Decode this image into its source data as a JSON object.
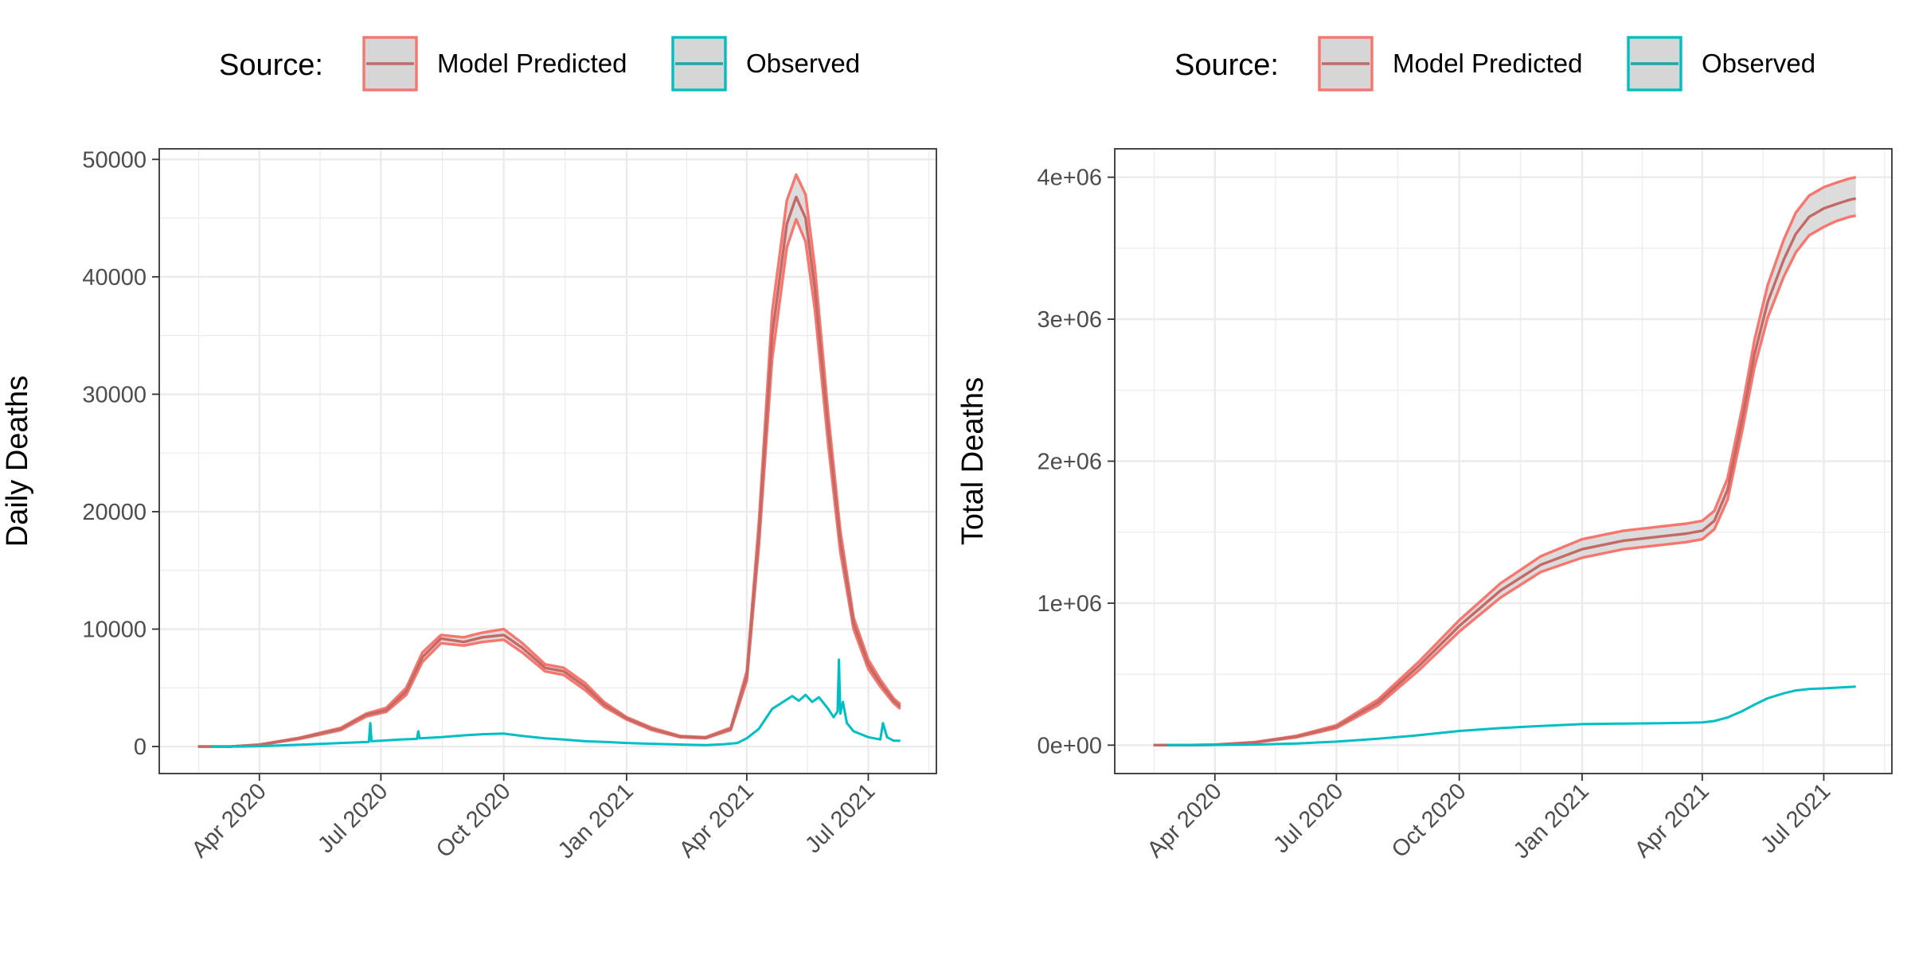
{
  "colors": {
    "model": "#F8766D",
    "model_mean": "#C46A66",
    "observed": "#00BFC4",
    "observed_key": "#1AA6AA",
    "ribbon": "#D6D6D6",
    "grid": "#EBEBEB",
    "axis_text": "#4D4D4D",
    "frame": "#333333"
  },
  "chart_data": [
    {
      "type": "line",
      "ylabel": "Daily Deaths",
      "xlabel": "",
      "grid": true,
      "legend_position": "top",
      "legend": {
        "title": "Source:",
        "entries": [
          "Model Predicted",
          "Observed"
        ]
      },
      "xlim": [
        "2020-01-17",
        "2021-08-21"
      ],
      "x_ticks": [
        "2020-04-01",
        "2020-07-01",
        "2020-10-01",
        "2021-01-01",
        "2021-04-01",
        "2021-07-01"
      ],
      "x_tick_labels": [
        "Apr 2020",
        "Jul 2020",
        "Oct 2020",
        "Jan 2021",
        "Apr 2021",
        "Jul 2021"
      ],
      "ylim": [
        -2300,
        50900
      ],
      "y_ticks": [
        0,
        10000,
        20000,
        30000,
        40000,
        50000
      ],
      "y_tick_labels": [
        "0",
        "10000",
        "20000",
        "30000",
        "40000",
        "50000"
      ],
      "series": [
        {
          "name": "Model Predicted",
          "kind": "ribbon",
          "x": [
            "2020-02-15",
            "2020-03-10",
            "2020-04-01",
            "2020-05-01",
            "2020-06-01",
            "2020-06-20",
            "2020-07-05",
            "2020-07-20",
            "2020-08-01",
            "2020-08-15",
            "2020-09-01",
            "2020-09-15",
            "2020-10-01",
            "2020-10-15",
            "2020-11-01",
            "2020-11-15",
            "2020-12-01",
            "2020-12-15",
            "2021-01-01",
            "2021-01-20",
            "2021-02-10",
            "2021-03-01",
            "2021-03-20",
            "2021-04-01",
            "2021-04-10",
            "2021-04-20",
            "2021-05-01",
            "2021-05-08",
            "2021-05-15",
            "2021-05-22",
            "2021-06-01",
            "2021-06-10",
            "2021-06-20",
            "2021-07-01",
            "2021-07-10",
            "2021-07-20",
            "2021-07-25"
          ],
          "mean": [
            0,
            0,
            150,
            700,
            1500,
            2700,
            3100,
            4700,
            7600,
            9200,
            8900,
            9300,
            9500,
            8400,
            6700,
            6400,
            5100,
            3600,
            2400,
            1500,
            850,
            750,
            1500,
            6000,
            18000,
            35000,
            44500,
            46800,
            45000,
            39000,
            27000,
            17500,
            10500,
            7000,
            5400,
            3900,
            3400
          ],
          "upper": [
            0,
            0,
            170,
            750,
            1600,
            2800,
            3300,
            5000,
            8000,
            9500,
            9300,
            9700,
            10000,
            8800,
            7000,
            6700,
            5400,
            3800,
            2500,
            1600,
            900,
            800,
            1600,
            6400,
            19000,
            37000,
            46500,
            48700,
            47000,
            40800,
            28300,
            18400,
            11000,
            7400,
            5700,
            4100,
            3600
          ],
          "lower": [
            0,
            0,
            130,
            650,
            1400,
            2550,
            2950,
            4400,
            7200,
            8800,
            8600,
            8900,
            9100,
            8000,
            6400,
            6100,
            4800,
            3400,
            2300,
            1400,
            800,
            700,
            1400,
            5600,
            17000,
            33000,
            42500,
            44900,
            43000,
            37200,
            25700,
            16600,
            10000,
            6600,
            5100,
            3700,
            3200
          ]
        },
        {
          "name": "Observed",
          "kind": "line",
          "x": [
            "2020-02-25",
            "2020-03-15",
            "2020-04-01",
            "2020-05-01",
            "2020-06-01",
            "2020-06-22",
            "2020-06-23",
            "2020-06-24",
            "2020-07-01",
            "2020-07-15",
            "2020-07-28",
            "2020-07-29",
            "2020-07-30",
            "2020-08-15",
            "2020-09-01",
            "2020-09-15",
            "2020-10-01",
            "2020-10-15",
            "2020-11-01",
            "2020-11-15",
            "2020-12-01",
            "2020-12-15",
            "2021-01-01",
            "2021-01-15",
            "2021-02-01",
            "2021-02-15",
            "2021-03-01",
            "2021-03-15",
            "2021-03-25",
            "2021-04-01",
            "2021-04-10",
            "2021-04-20",
            "2021-05-01",
            "2021-05-05",
            "2021-05-10",
            "2021-05-15",
            "2021-05-20",
            "2021-05-25",
            "2021-06-01",
            "2021-06-05",
            "2021-06-08",
            "2021-06-09",
            "2021-06-10",
            "2021-06-12",
            "2021-06-15",
            "2021-06-20",
            "2021-07-01",
            "2021-07-10",
            "2021-07-12",
            "2021-07-15",
            "2021-07-20",
            "2021-07-25"
          ],
          "values": [
            0,
            0,
            30,
            150,
            300,
            400,
            2000,
            450,
            500,
            600,
            650,
            1300,
            700,
            800,
            950,
            1050,
            1100,
            900,
            700,
            600,
            450,
            400,
            300,
            250,
            200,
            150,
            120,
            200,
            300,
            700,
            1500,
            3200,
            4000,
            4300,
            3900,
            4400,
            3800,
            4200,
            3200,
            2500,
            3000,
            7400,
            2800,
            3800,
            2000,
            1300,
            800,
            600,
            2000,
            800,
            500,
            500
          ]
        }
      ]
    },
    {
      "type": "line",
      "ylabel": "Total Deaths",
      "xlabel": "",
      "grid": true,
      "legend_position": "top",
      "legend": {
        "title": "Source:",
        "entries": [
          "Model Predicted",
          "Observed"
        ]
      },
      "xlim": [
        "2020-01-17",
        "2021-08-21"
      ],
      "x_ticks": [
        "2020-04-01",
        "2020-07-01",
        "2020-10-01",
        "2021-01-01",
        "2021-04-01",
        "2021-07-01"
      ],
      "x_tick_labels": [
        "Apr 2020",
        "Jul 2020",
        "Oct 2020",
        "Jan 2021",
        "Apr 2021",
        "Jul 2021"
      ],
      "ylim": [
        -200000,
        4200000
      ],
      "y_ticks": [
        0,
        1000000,
        2000000,
        3000000,
        4000000
      ],
      "y_tick_labels": [
        "0e+00",
        "1e+06",
        "2e+06",
        "3e+06",
        "4e+06"
      ],
      "series": [
        {
          "name": "Model Predicted",
          "kind": "ribbon",
          "x": [
            "2020-02-15",
            "2020-03-10",
            "2020-04-01",
            "2020-05-01",
            "2020-06-01",
            "2020-07-01",
            "2020-08-01",
            "2020-09-01",
            "2020-10-01",
            "2020-11-01",
            "2020-12-01",
            "2021-01-01",
            "2021-02-01",
            "2021-03-01",
            "2021-03-20",
            "2021-04-01",
            "2021-04-10",
            "2021-04-20",
            "2021-05-01",
            "2021-05-10",
            "2021-05-20",
            "2021-06-01",
            "2021-06-10",
            "2021-06-20",
            "2021-07-01",
            "2021-07-10",
            "2021-07-20",
            "2021-07-25"
          ],
          "mean": [
            0,
            0,
            3000,
            20000,
            60000,
            130000,
            300000,
            560000,
            840000,
            1090000,
            1270000,
            1380000,
            1440000,
            1470000,
            1490000,
            1510000,
            1580000,
            1800000,
            2300000,
            2750000,
            3120000,
            3420000,
            3600000,
            3720000,
            3780000,
            3810000,
            3840000,
            3850000
          ],
          "upper": [
            0,
            0,
            3500,
            22000,
            65000,
            140000,
            320000,
            590000,
            880000,
            1140000,
            1330000,
            1450000,
            1510000,
            1540000,
            1560000,
            1580000,
            1650000,
            1880000,
            2380000,
            2850000,
            3240000,
            3560000,
            3750000,
            3870000,
            3930000,
            3960000,
            3990000,
            4000000
          ],
          "lower": [
            0,
            0,
            2500,
            18000,
            55000,
            120000,
            280000,
            530000,
            800000,
            1040000,
            1220000,
            1320000,
            1380000,
            1410000,
            1430000,
            1450000,
            1520000,
            1730000,
            2220000,
            2660000,
            3010000,
            3300000,
            3470000,
            3590000,
            3650000,
            3690000,
            3720000,
            3730000
          ]
        },
        {
          "name": "Observed",
          "kind": "line",
          "x": [
            "2020-02-25",
            "2020-04-01",
            "2020-05-01",
            "2020-06-01",
            "2020-07-01",
            "2020-08-01",
            "2020-09-01",
            "2020-10-01",
            "2020-11-01",
            "2020-12-01",
            "2021-01-01",
            "2021-02-01",
            "2021-03-01",
            "2021-03-20",
            "2021-04-01",
            "2021-04-10",
            "2021-04-20",
            "2021-05-01",
            "2021-05-10",
            "2021-05-20",
            "2021-06-01",
            "2021-06-10",
            "2021-06-20",
            "2021-07-01",
            "2021-07-10",
            "2021-07-20",
            "2021-07-25"
          ],
          "values": [
            0,
            1000,
            4000,
            12000,
            25000,
            45000,
            70000,
            100000,
            120000,
            135000,
            148000,
            152000,
            155000,
            157000,
            160000,
            170000,
            195000,
            240000,
            285000,
            330000,
            365000,
            385000,
            395000,
            400000,
            405000,
            410000,
            412000
          ]
        }
      ]
    }
  ]
}
